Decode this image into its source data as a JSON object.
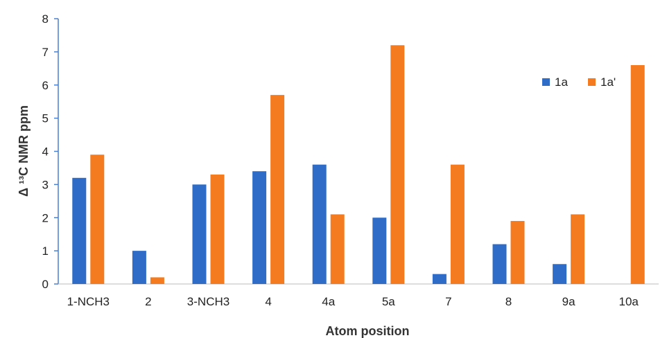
{
  "chart_data": {
    "type": "bar",
    "categories": [
      "1-NCH3",
      "2",
      "3-NCH3",
      "4",
      "4a",
      "5a",
      "7",
      "8",
      "9a",
      "10a"
    ],
    "series": [
      {
        "name": "1a",
        "color": "#2E6CC8",
        "values": [
          3.2,
          1.0,
          3.0,
          3.4,
          3.6,
          2.0,
          0.3,
          1.2,
          0.6,
          0
        ]
      },
      {
        "name": "1a'",
        "color": "#F47B20",
        "values": [
          3.9,
          0.2,
          3.3,
          5.7,
          2.1,
          7.2,
          3.6,
          1.9,
          2.1,
          6.6
        ]
      }
    ],
    "title": "",
    "xlabel": "Atom position",
    "ylabel": "Δ ¹³C NMR ppm",
    "ylim": [
      0,
      8
    ],
    "yticks": [
      "0",
      "1",
      "2",
      "3",
      "4",
      "5",
      "6",
      "7",
      "8"
    ],
    "grid": false,
    "legend_position": "top-right"
  }
}
